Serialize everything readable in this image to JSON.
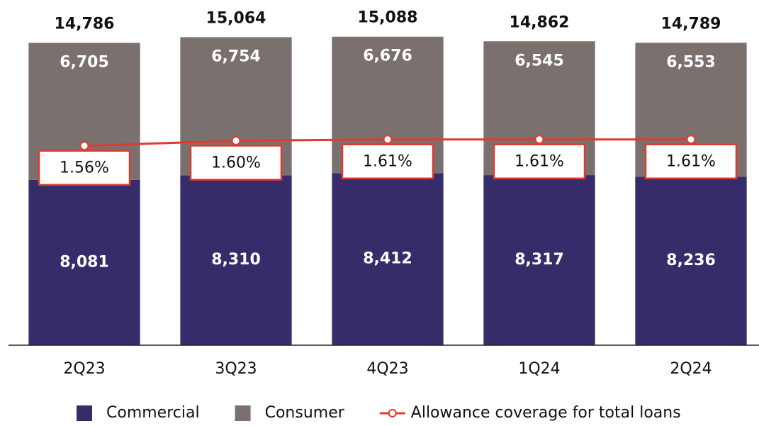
{
  "chart_data": {
    "type": "bar",
    "stacked": true,
    "categories": [
      "2Q23",
      "3Q23",
      "4Q23",
      "1Q24",
      "2Q24"
    ],
    "series": [
      {
        "name": "Commercial",
        "color": "#372c6a",
        "values": [
          8081,
          8310,
          8412,
          8317,
          8236
        ],
        "value_labels": [
          "8,081",
          "8,310",
          "8,412",
          "8,317",
          "8,236"
        ]
      },
      {
        "name": "Consumer",
        "color": "#7a716f",
        "values": [
          6705,
          6754,
          6676,
          6545,
          6553
        ],
        "value_labels": [
          "6,705",
          "6,754",
          "6,676",
          "6,545",
          "6,553"
        ]
      },
      {
        "name": "Allowance coverage for total loans",
        "type": "line",
        "axis": "y2",
        "color": "#e03a2e",
        "values": [
          1.56,
          1.6,
          1.61,
          1.61,
          1.61
        ],
        "value_labels": [
          "1.56%",
          "1.60%",
          "1.61%",
          "1.61%",
          "1.61%"
        ]
      }
    ],
    "totals": [
      14786,
      15064,
      15088,
      14862,
      14789
    ],
    "total_labels": [
      "14,786",
      "15,064",
      "15,088",
      "14,862",
      "14,789"
    ],
    "ylim": [
      0,
      16500
    ],
    "y2lim": [
      0,
      2.64
    ],
    "legend": "bottom"
  }
}
